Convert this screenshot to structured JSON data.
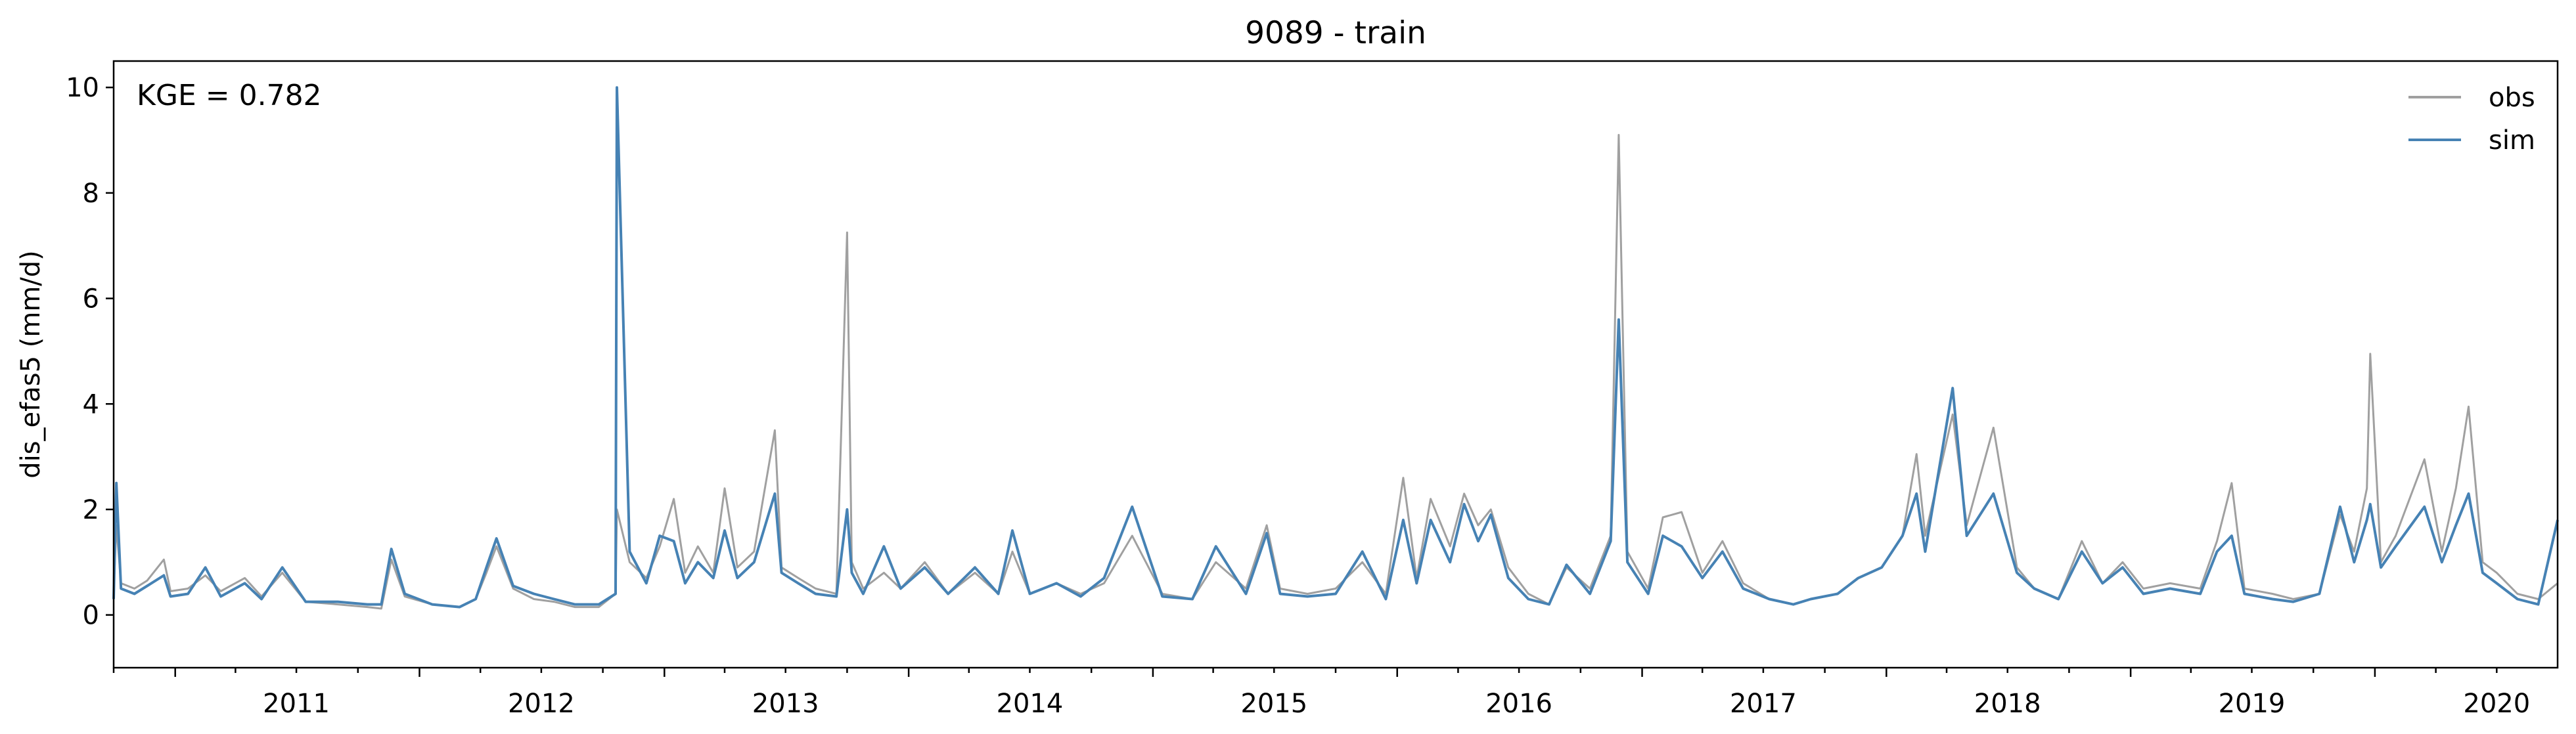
{
  "chart_data": {
    "type": "line",
    "title": "9089 - train",
    "xlabel": "",
    "ylabel": "dis_efas5 (mm/d)",
    "annotation": "KGE = 0.782",
    "xlim": [
      "2010-10-01",
      "2020-09-30"
    ],
    "ylim": [
      -1,
      10.5
    ],
    "yticks": [
      0,
      2,
      4,
      6,
      8,
      10
    ],
    "ytick_labels": [
      "0",
      "2",
      "4",
      "6",
      "8",
      "10"
    ],
    "xtick_labels": [
      "2011",
      "2012",
      "2013",
      "2014",
      "2015",
      "2016",
      "2017",
      "2018",
      "2019",
      "2020"
    ],
    "legend_position": "top-right",
    "grid": false,
    "series": [
      {
        "name": "obs",
        "color": "#a0a0a0",
        "points": [
          [
            "2010-10-01",
            0.45
          ],
          [
            "2010-10-05",
            1.7
          ],
          [
            "2010-10-12",
            0.6
          ],
          [
            "2010-11-01",
            0.5
          ],
          [
            "2010-11-20",
            0.65
          ],
          [
            "2010-12-15",
            1.05
          ],
          [
            "2010-12-25",
            0.45
          ],
          [
            "2011-01-20",
            0.5
          ],
          [
            "2011-02-15",
            0.75
          ],
          [
            "2011-03-10",
            0.45
          ],
          [
            "2011-04-15",
            0.7
          ],
          [
            "2011-05-10",
            0.35
          ],
          [
            "2011-06-10",
            0.8
          ],
          [
            "2011-07-15",
            0.25
          ],
          [
            "2011-09-01",
            0.2
          ],
          [
            "2011-10-15",
            0.15
          ],
          [
            "2011-11-05",
            0.12
          ],
          [
            "2011-11-20",
            1.05
          ],
          [
            "2011-12-10",
            0.35
          ],
          [
            "2012-01-20",
            0.2
          ],
          [
            "2012-03-01",
            0.15
          ],
          [
            "2012-03-25",
            0.3
          ],
          [
            "2012-04-10",
            0.8
          ],
          [
            "2012-04-25",
            1.3
          ],
          [
            "2012-05-20",
            0.5
          ],
          [
            "2012-06-20",
            0.3
          ],
          [
            "2012-07-20",
            0.25
          ],
          [
            "2012-08-20",
            0.15
          ],
          [
            "2012-09-25",
            0.15
          ],
          [
            "2012-10-20",
            0.4
          ],
          [
            "2012-10-22",
            2.0
          ],
          [
            "2012-11-10",
            1.0
          ],
          [
            "2012-12-05",
            0.7
          ],
          [
            "2012-12-25",
            1.3
          ],
          [
            "2013-01-15",
            2.2
          ],
          [
            "2013-02-01",
            0.8
          ],
          [
            "2013-02-20",
            1.3
          ],
          [
            "2013-03-15",
            0.8
          ],
          [
            "2013-04-01",
            2.4
          ],
          [
            "2013-04-20",
            0.9
          ],
          [
            "2013-05-15",
            1.2
          ],
          [
            "2013-06-15",
            3.5
          ],
          [
            "2013-06-25",
            0.9
          ],
          [
            "2013-07-20",
            0.7
          ],
          [
            "2013-08-15",
            0.5
          ],
          [
            "2013-09-15",
            0.4
          ],
          [
            "2013-10-01",
            7.25
          ],
          [
            "2013-10-08",
            1.0
          ],
          [
            "2013-10-25",
            0.5
          ],
          [
            "2013-11-25",
            0.8
          ],
          [
            "2013-12-20",
            0.5
          ],
          [
            "2014-01-25",
            1.0
          ],
          [
            "2014-03-01",
            0.4
          ],
          [
            "2014-04-10",
            0.8
          ],
          [
            "2014-05-15",
            0.4
          ],
          [
            "2014-06-05",
            1.2
          ],
          [
            "2014-07-01",
            0.4
          ],
          [
            "2014-08-10",
            0.6
          ],
          [
            "2014-09-15",
            0.4
          ],
          [
            "2014-10-20",
            0.6
          ],
          [
            "2014-12-01",
            1.5
          ],
          [
            "2015-01-15",
            0.4
          ],
          [
            "2015-03-01",
            0.3
          ],
          [
            "2015-04-05",
            1.0
          ],
          [
            "2015-05-20",
            0.5
          ],
          [
            "2015-06-20",
            1.7
          ],
          [
            "2015-07-10",
            0.5
          ],
          [
            "2015-08-20",
            0.4
          ],
          [
            "2015-10-01",
            0.5
          ],
          [
            "2015-11-10",
            1.0
          ],
          [
            "2015-12-15",
            0.4
          ],
          [
            "2016-01-10",
            2.6
          ],
          [
            "2016-01-30",
            0.7
          ],
          [
            "2016-02-20",
            2.2
          ],
          [
            "2016-03-20",
            1.3
          ],
          [
            "2016-04-10",
            2.3
          ],
          [
            "2016-05-01",
            1.7
          ],
          [
            "2016-05-20",
            2.0
          ],
          [
            "2016-06-15",
            0.9
          ],
          [
            "2016-07-15",
            0.4
          ],
          [
            "2016-08-15",
            0.2
          ],
          [
            "2016-09-10",
            0.9
          ],
          [
            "2016-10-15",
            0.5
          ],
          [
            "2016-11-15",
            1.5
          ],
          [
            "2016-11-27",
            9.1
          ],
          [
            "2016-12-10",
            1.2
          ],
          [
            "2017-01-10",
            0.5
          ],
          [
            "2017-02-01",
            1.85
          ],
          [
            "2017-03-01",
            1.95
          ],
          [
            "2017-04-01",
            0.8
          ],
          [
            "2017-05-01",
            1.4
          ],
          [
            "2017-06-01",
            0.6
          ],
          [
            "2017-07-10",
            0.3
          ],
          [
            "2017-08-15",
            0.2
          ],
          [
            "2017-09-10",
            0.3
          ],
          [
            "2017-10-20",
            0.4
          ],
          [
            "2017-11-20",
            0.7
          ],
          [
            "2017-12-25",
            0.9
          ],
          [
            "2018-01-25",
            1.5
          ],
          [
            "2018-02-15",
            3.05
          ],
          [
            "2018-02-28",
            1.5
          ],
          [
            "2018-04-10",
            3.8
          ],
          [
            "2018-05-01",
            1.7
          ],
          [
            "2018-06-10",
            3.55
          ],
          [
            "2018-07-15",
            0.9
          ],
          [
            "2018-08-10",
            0.5
          ],
          [
            "2018-09-15",
            0.3
          ],
          [
            "2018-10-20",
            1.4
          ],
          [
            "2018-11-20",
            0.6
          ],
          [
            "2018-12-20",
            1.0
          ],
          [
            "2019-01-20",
            0.5
          ],
          [
            "2019-03-01",
            0.6
          ],
          [
            "2019-04-15",
            0.5
          ],
          [
            "2019-05-10",
            1.4
          ],
          [
            "2019-06-01",
            2.5
          ],
          [
            "2019-06-20",
            0.5
          ],
          [
            "2019-08-01",
            0.4
          ],
          [
            "2019-09-01",
            0.3
          ],
          [
            "2019-10-10",
            0.4
          ],
          [
            "2019-11-10",
            1.9
          ],
          [
            "2019-12-01",
            1.2
          ],
          [
            "2019-12-20",
            2.4
          ],
          [
            "2019-12-25",
            4.95
          ],
          [
            "2020-01-10",
            1.0
          ],
          [
            "2020-02-01",
            1.5
          ],
          [
            "2020-03-15",
            2.95
          ],
          [
            "2020-04-10",
            1.2
          ],
          [
            "2020-05-01",
            2.4
          ],
          [
            "2020-05-20",
            3.95
          ],
          [
            "2020-06-10",
            1.0
          ],
          [
            "2020-07-01",
            0.8
          ],
          [
            "2020-08-01",
            0.4
          ],
          [
            "2020-09-01",
            0.3
          ],
          [
            "2020-09-30",
            0.6
          ]
        ]
      },
      {
        "name": "sim",
        "color": "#4682b4",
        "points": [
          [
            "2010-10-01",
            0.3
          ],
          [
            "2010-10-05",
            2.5
          ],
          [
            "2010-10-12",
            0.5
          ],
          [
            "2010-11-01",
            0.4
          ],
          [
            "2010-11-20",
            0.55
          ],
          [
            "2010-12-15",
            0.75
          ],
          [
            "2010-12-25",
            0.35
          ],
          [
            "2011-01-20",
            0.4
          ],
          [
            "2011-02-15",
            0.9
          ],
          [
            "2011-03-10",
            0.35
          ],
          [
            "2011-04-15",
            0.6
          ],
          [
            "2011-05-10",
            0.3
          ],
          [
            "2011-06-10",
            0.9
          ],
          [
            "2011-07-15",
            0.25
          ],
          [
            "2011-09-01",
            0.25
          ],
          [
            "2011-10-15",
            0.2
          ],
          [
            "2011-11-05",
            0.2
          ],
          [
            "2011-11-20",
            1.25
          ],
          [
            "2011-12-10",
            0.4
          ],
          [
            "2012-01-20",
            0.2
          ],
          [
            "2012-03-01",
            0.15
          ],
          [
            "2012-03-25",
            0.3
          ],
          [
            "2012-04-10",
            0.9
          ],
          [
            "2012-04-25",
            1.45
          ],
          [
            "2012-05-20",
            0.55
          ],
          [
            "2012-06-20",
            0.4
          ],
          [
            "2012-07-20",
            0.3
          ],
          [
            "2012-08-20",
            0.2
          ],
          [
            "2012-09-25",
            0.2
          ],
          [
            "2012-10-20",
            0.4
          ],
          [
            "2012-10-22",
            10.0
          ],
          [
            "2012-11-10",
            1.2
          ],
          [
            "2012-12-05",
            0.6
          ],
          [
            "2012-12-25",
            1.5
          ],
          [
            "2013-01-15",
            1.4
          ],
          [
            "2013-02-01",
            0.6
          ],
          [
            "2013-02-20",
            1.0
          ],
          [
            "2013-03-15",
            0.7
          ],
          [
            "2013-04-01",
            1.6
          ],
          [
            "2013-04-20",
            0.7
          ],
          [
            "2013-05-15",
            1.0
          ],
          [
            "2013-06-15",
            2.3
          ],
          [
            "2013-06-25",
            0.8
          ],
          [
            "2013-07-20",
            0.6
          ],
          [
            "2013-08-15",
            0.4
          ],
          [
            "2013-09-15",
            0.35
          ],
          [
            "2013-10-01",
            2.0
          ],
          [
            "2013-10-08",
            0.8
          ],
          [
            "2013-10-25",
            0.4
          ],
          [
            "2013-11-25",
            1.3
          ],
          [
            "2013-12-20",
            0.5
          ],
          [
            "2014-01-25",
            0.9
          ],
          [
            "2014-03-01",
            0.4
          ],
          [
            "2014-04-10",
            0.9
          ],
          [
            "2014-05-15",
            0.4
          ],
          [
            "2014-06-05",
            1.6
          ],
          [
            "2014-07-01",
            0.4
          ],
          [
            "2014-08-10",
            0.6
          ],
          [
            "2014-09-15",
            0.35
          ],
          [
            "2014-10-20",
            0.7
          ],
          [
            "2014-12-01",
            2.05
          ],
          [
            "2015-01-15",
            0.35
          ],
          [
            "2015-03-01",
            0.3
          ],
          [
            "2015-04-05",
            1.3
          ],
          [
            "2015-05-20",
            0.4
          ],
          [
            "2015-06-20",
            1.55
          ],
          [
            "2015-07-10",
            0.4
          ],
          [
            "2015-08-20",
            0.35
          ],
          [
            "2015-10-01",
            0.4
          ],
          [
            "2015-11-10",
            1.2
          ],
          [
            "2015-12-15",
            0.3
          ],
          [
            "2016-01-10",
            1.8
          ],
          [
            "2016-01-30",
            0.6
          ],
          [
            "2016-02-20",
            1.8
          ],
          [
            "2016-03-20",
            1.0
          ],
          [
            "2016-04-10",
            2.1
          ],
          [
            "2016-05-01",
            1.4
          ],
          [
            "2016-05-20",
            1.9
          ],
          [
            "2016-06-15",
            0.7
          ],
          [
            "2016-07-15",
            0.3
          ],
          [
            "2016-08-15",
            0.2
          ],
          [
            "2016-09-10",
            0.95
          ],
          [
            "2016-10-15",
            0.4
          ],
          [
            "2016-11-15",
            1.4
          ],
          [
            "2016-11-27",
            5.6
          ],
          [
            "2016-12-10",
            1.0
          ],
          [
            "2017-01-10",
            0.4
          ],
          [
            "2017-02-01",
            1.5
          ],
          [
            "2017-03-01",
            1.3
          ],
          [
            "2017-04-01",
            0.7
          ],
          [
            "2017-05-01",
            1.2
          ],
          [
            "2017-06-01",
            0.5
          ],
          [
            "2017-07-10",
            0.3
          ],
          [
            "2017-08-15",
            0.2
          ],
          [
            "2017-09-10",
            0.3
          ],
          [
            "2017-10-20",
            0.4
          ],
          [
            "2017-11-20",
            0.7
          ],
          [
            "2017-12-25",
            0.9
          ],
          [
            "2018-01-25",
            1.5
          ],
          [
            "2018-02-15",
            2.3
          ],
          [
            "2018-02-28",
            1.2
          ],
          [
            "2018-04-10",
            4.3
          ],
          [
            "2018-05-01",
            1.5
          ],
          [
            "2018-06-10",
            2.3
          ],
          [
            "2018-07-15",
            0.8
          ],
          [
            "2018-08-10",
            0.5
          ],
          [
            "2018-09-15",
            0.3
          ],
          [
            "2018-10-20",
            1.2
          ],
          [
            "2018-11-20",
            0.6
          ],
          [
            "2018-12-20",
            0.9
          ],
          [
            "2019-01-20",
            0.4
          ],
          [
            "2019-03-01",
            0.5
          ],
          [
            "2019-04-15",
            0.4
          ],
          [
            "2019-05-10",
            1.2
          ],
          [
            "2019-06-01",
            1.5
          ],
          [
            "2019-06-20",
            0.4
          ],
          [
            "2019-08-01",
            0.3
          ],
          [
            "2019-09-01",
            0.25
          ],
          [
            "2019-10-10",
            0.4
          ],
          [
            "2019-11-10",
            2.05
          ],
          [
            "2019-12-01",
            1.0
          ],
          [
            "2019-12-20",
            1.8
          ],
          [
            "2019-12-25",
            2.1
          ],
          [
            "2020-01-10",
            0.9
          ],
          [
            "2020-02-01",
            1.3
          ],
          [
            "2020-03-15",
            2.05
          ],
          [
            "2020-04-10",
            1.0
          ],
          [
            "2020-05-01",
            1.7
          ],
          [
            "2020-05-20",
            2.3
          ],
          [
            "2020-06-10",
            0.8
          ],
          [
            "2020-07-01",
            0.6
          ],
          [
            "2020-08-01",
            0.3
          ],
          [
            "2020-09-01",
            0.2
          ],
          [
            "2020-09-30",
            1.8
          ]
        ]
      }
    ]
  }
}
